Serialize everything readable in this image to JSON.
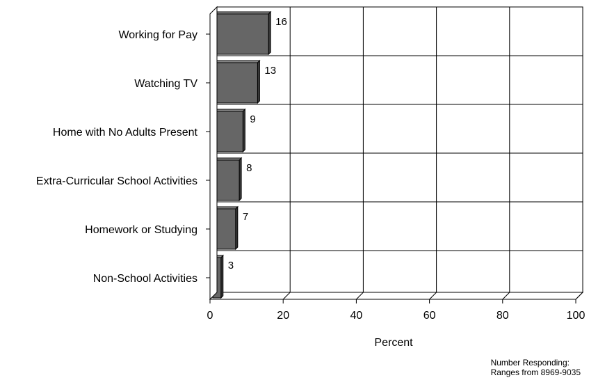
{
  "chart_data": {
    "type": "bar",
    "orientation": "horizontal",
    "categories": [
      "Working for Pay",
      "Watching TV",
      "Home with No Adults Present",
      "Extra-Curricular School Activities",
      "Homework or Studying",
      "Non-School Activities"
    ],
    "values": [
      16,
      13,
      9,
      8,
      7,
      3
    ],
    "xlabel": "Percent",
    "ylabel": "",
    "title": "",
    "xlim": [
      0,
      100
    ],
    "xticks": [
      0,
      20,
      40,
      60,
      80,
      100
    ],
    "grid": true,
    "bar_color": "#666666",
    "style": "3d"
  },
  "note": {
    "line1": "Number Responding:",
    "line2": "Ranges from 8969-9035"
  }
}
